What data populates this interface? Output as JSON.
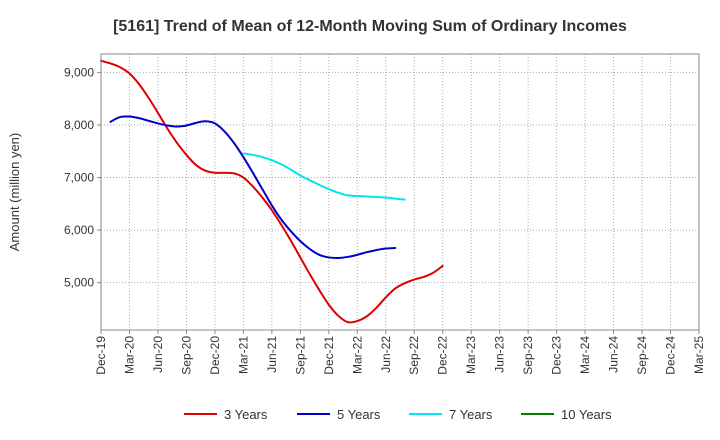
{
  "chart_data": {
    "type": "line",
    "title": "[5161]  Trend of Mean of 12-Month Moving Sum of Ordinary Incomes",
    "xlabel": "",
    "ylabel": "Amount (million yen)",
    "ylim": [
      4100,
      9350
    ],
    "yticks": [
      5000,
      6000,
      7000,
      8000,
      9000
    ],
    "ytick_labels": [
      "5,000",
      "6,000",
      "7,000",
      "8,000",
      "9,000"
    ],
    "x_ticks": [
      "Dec-19",
      "Mar-20",
      "Jun-20",
      "Sep-20",
      "Dec-20",
      "Mar-21",
      "Jun-21",
      "Sep-21",
      "Dec-21",
      "Mar-22",
      "Jun-22",
      "Sep-22",
      "Dec-22",
      "Mar-23",
      "Jun-23",
      "Sep-23",
      "Dec-23",
      "Mar-24",
      "Jun-24",
      "Sep-24",
      "Dec-24",
      "Mar-25"
    ],
    "grid": true,
    "legend_position": "bottom",
    "series": [
      {
        "name": "3 Years",
        "color": "#dd0000",
        "start_index": 0,
        "values": [
          9220,
          9170,
          9100,
          8980,
          8780,
          8520,
          8230,
          7930,
          7660,
          7430,
          7240,
          7130,
          7090,
          7090,
          7080,
          7000,
          6830,
          6620,
          6380,
          6100,
          5800,
          5480,
          5160,
          4860,
          4580,
          4370,
          4250,
          4270,
          4360,
          4520,
          4720,
          4890,
          4990,
          5060,
          5110,
          5190,
          5320
        ]
      },
      {
        "name": "5 Years",
        "color": "#0000cc",
        "start_index": 1,
        "values": [
          8060,
          8150,
          8160,
          8130,
          8080,
          8030,
          7990,
          7970,
          7990,
          8040,
          8070,
          8030,
          7880,
          7660,
          7390,
          7090,
          6780,
          6470,
          6200,
          5980,
          5790,
          5640,
          5530,
          5480,
          5470,
          5490,
          5530,
          5580,
          5620,
          5650,
          5660
        ]
      },
      {
        "name": "7 Years",
        "color": "#00e5ee",
        "start_index": 15,
        "values": [
          7460,
          7430,
          7390,
          7330,
          7250,
          7150,
          7040,
          6950,
          6860,
          6780,
          6710,
          6660,
          6650,
          6640,
          6630,
          6620,
          6600,
          6580
        ]
      },
      {
        "name": "10 Years",
        "color": "#008000",
        "start_index": 0,
        "values": []
      }
    ]
  }
}
